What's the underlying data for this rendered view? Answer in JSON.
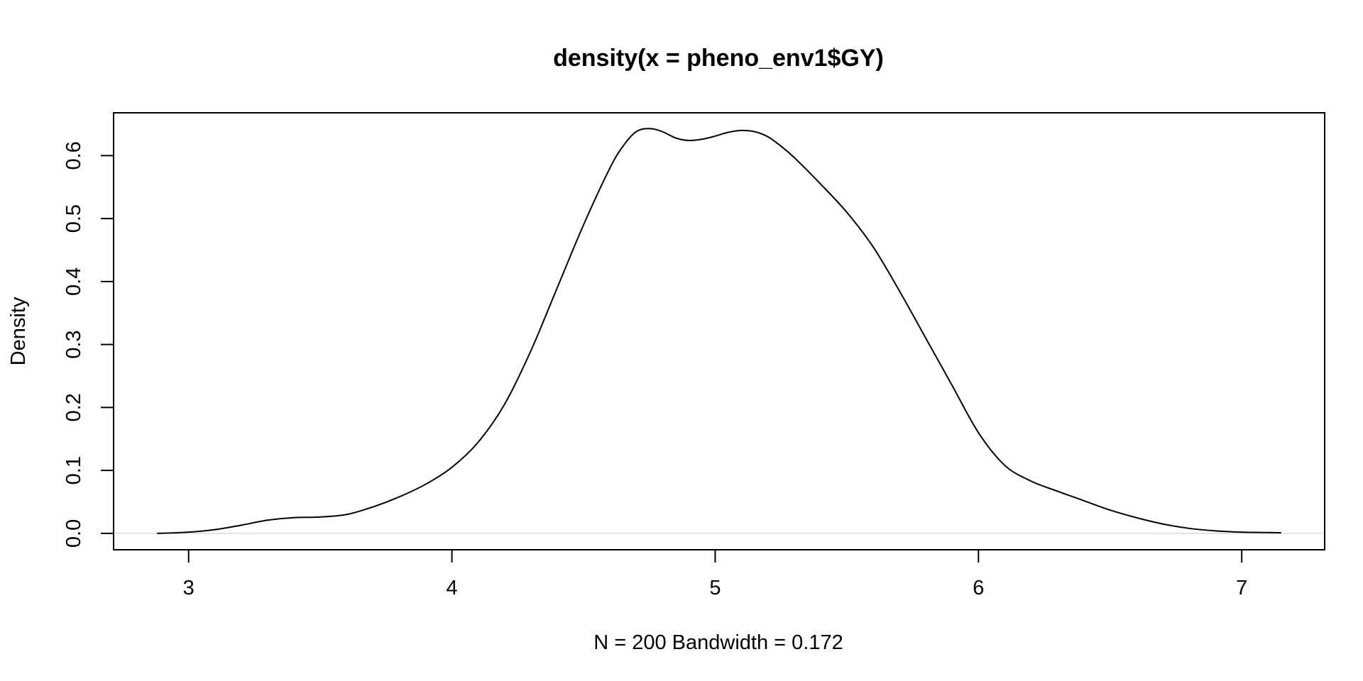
{
  "chart_data": {
    "type": "line",
    "title": "density(x = pheno_env1$GY)",
    "xlabel": "N = 200   Bandwidth = 0.172",
    "ylabel": "Density",
    "xlim": [
      2.715,
      7.315
    ],
    "ylim": [
      -0.026,
      0.668
    ],
    "x_ticks": [
      3,
      4,
      5,
      6,
      7
    ],
    "x_tick_labels": [
      "3",
      "4",
      "5",
      "6",
      "7"
    ],
    "y_ticks": [
      0.0,
      0.1,
      0.2,
      0.3,
      0.4,
      0.5,
      0.6
    ],
    "y_tick_labels": [
      "0.0",
      "0.1",
      "0.2",
      "0.3",
      "0.4",
      "0.5",
      "0.6"
    ],
    "grid": false,
    "baseline": 0,
    "colors": {
      "line": "#000000",
      "baseline": "#d9d9d9",
      "frame": "#000000"
    },
    "series": [
      {
        "x": [
          2.88,
          3.0,
          3.1,
          3.2,
          3.3,
          3.4,
          3.5,
          3.6,
          3.7,
          3.8,
          3.9,
          4.0,
          4.1,
          4.2,
          4.3,
          4.4,
          4.5,
          4.6,
          4.65,
          4.7,
          4.75,
          4.8,
          4.85,
          4.9,
          4.95,
          5.0,
          5.05,
          5.1,
          5.15,
          5.2,
          5.25,
          5.3,
          5.4,
          5.5,
          5.6,
          5.7,
          5.8,
          5.9,
          6.0,
          6.1,
          6.2,
          6.3,
          6.4,
          6.5,
          6.6,
          6.7,
          6.8,
          6.9,
          7.0,
          7.15
        ],
        "y": [
          0.0,
          0.002,
          0.006,
          0.013,
          0.021,
          0.025,
          0.026,
          0.03,
          0.042,
          0.058,
          0.078,
          0.105,
          0.145,
          0.205,
          0.29,
          0.39,
          0.49,
          0.58,
          0.615,
          0.638,
          0.643,
          0.638,
          0.628,
          0.624,
          0.626,
          0.631,
          0.637,
          0.64,
          0.638,
          0.63,
          0.615,
          0.597,
          0.555,
          0.51,
          0.455,
          0.385,
          0.31,
          0.235,
          0.16,
          0.108,
          0.083,
          0.067,
          0.052,
          0.037,
          0.025,
          0.015,
          0.008,
          0.004,
          0.002,
          0.001
        ]
      }
    ]
  }
}
